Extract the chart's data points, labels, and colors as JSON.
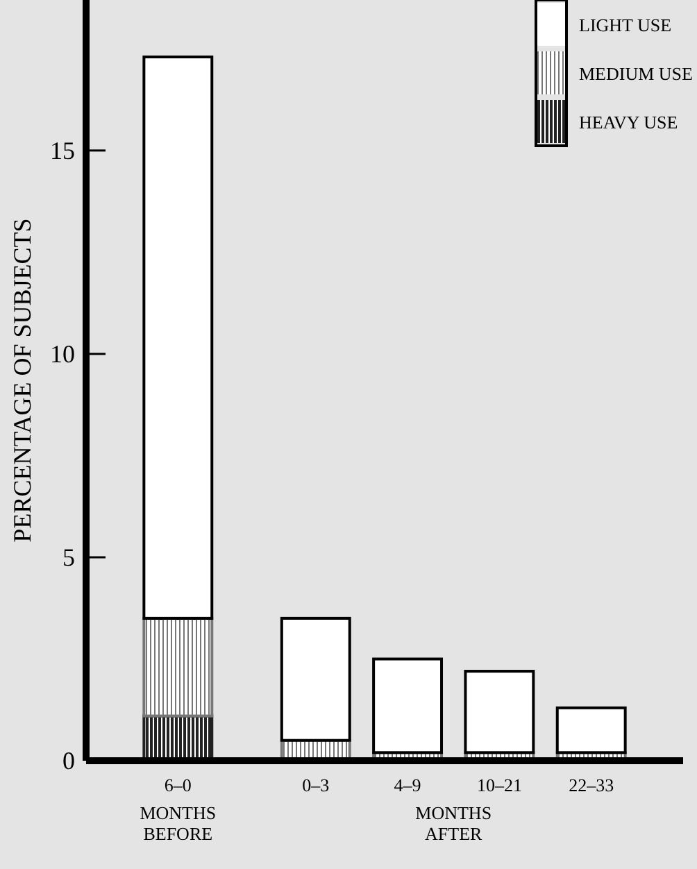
{
  "chart_data": {
    "type": "bar",
    "stacked": true,
    "ylabel": "PERCENTAGE OF SUBJECTS",
    "categories": [
      "6–0",
      "0–3",
      "4–9",
      "10–21",
      "22–33"
    ],
    "series": [
      {
        "name": "HEAVY USE",
        "color": "#222222",
        "values": [
          1.1,
          null,
          null,
          null,
          null
        ]
      },
      {
        "name": "MEDIUM USE",
        "color": "#777777",
        "values": [
          2.4,
          0.5,
          0.2,
          0.2,
          0.2
        ]
      },
      {
        "name": "LIGHT USE",
        "color": "#ffffff",
        "values": [
          13.8,
          3.0,
          2.3,
          2.0,
          1.1
        ]
      }
    ],
    "ylim": [
      0,
      18.7
    ],
    "yticks": [
      0,
      5,
      10,
      15
    ],
    "grid": false,
    "legend": "top right",
    "annotations": [
      "MONTHS BEFORE",
      "MONTHS AFTER"
    ]
  }
}
